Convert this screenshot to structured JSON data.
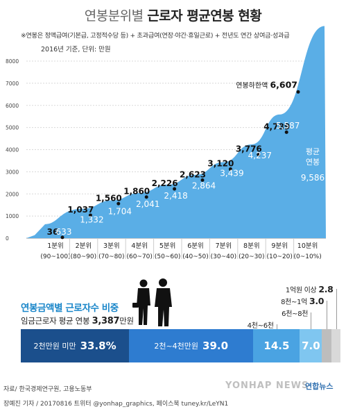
{
  "title_part1": "연봉분위별",
  "title_part2": "근로자 평균연봉 현황",
  "note": "※연봉은 정액급여(기본급, 고정적수당 등) + 초과급여(연장·야간·휴일근로) + 전년도 연간 상여금·성과급",
  "unit": "2016년 기준, 단위: 만원",
  "chart_data": {
    "type": "area",
    "ylim": [
      0,
      8000
    ],
    "yticks": [
      0,
      1000,
      2000,
      3000,
      4000,
      5000,
      6000,
      7000,
      8000
    ],
    "categories": [
      "1분위",
      "2분위",
      "3분위",
      "4분위",
      "5분위",
      "6분위",
      "7분위",
      "8분위",
      "9분위",
      "10분위"
    ],
    "category_ranges": [
      "(90~100)",
      "(80~90)",
      "(70~80)",
      "(60~70)",
      "(50~60)",
      "(40~50)",
      "(30~40)",
      "(20~30)",
      "(10~20)",
      "(0~10%)"
    ],
    "lower_bound": [
      36,
      1037,
      1560,
      1860,
      2226,
      2623,
      3120,
      3776,
      4789,
      6607
    ],
    "average": [
      633,
      1332,
      1704,
      2041,
      2418,
      2864,
      3439,
      4237,
      5587,
      9586
    ],
    "lower_label": "연봉하한액",
    "avg_label_line1": "평균",
    "avg_label_line2": "연봉"
  },
  "distribution": {
    "title": "연봉금액별 근로자수 비중",
    "avg_text": "임금근로자 평균 연봉",
    "avg_value": "3,387",
    "avg_unit": "만원",
    "segments": [
      {
        "label": "2천만원 미만",
        "value": 33.8,
        "display": "33.8%",
        "color": "#1b4f8c"
      },
      {
        "label": "2천~4천만원",
        "value": 39.0,
        "display": "39.0",
        "color": "#2e7cd0"
      },
      {
        "label": "4천~6천",
        "value": 14.5,
        "display": "14.5",
        "color": "#4aa3e2"
      },
      {
        "label": "6천~8천",
        "value": 7.0,
        "display": "7.0",
        "color": "#7fc6f0"
      },
      {
        "label": "8천~1억",
        "value": 3.0,
        "display": "3.0",
        "color": "#bdbdbd"
      },
      {
        "label": "1억원 이상",
        "value": 2.8,
        "display": "2.8",
        "color": "#d9d9d9"
      }
    ]
  },
  "source": "자료/ 한국경제연구원, 고용노동부",
  "credit": "장예진 기자 / 20170816 트위터 @yonhap_graphics, 페이스북 tuney.kr/LeYN1",
  "watermark": "YONHAP NEWS",
  "agency": "연합뉴스"
}
